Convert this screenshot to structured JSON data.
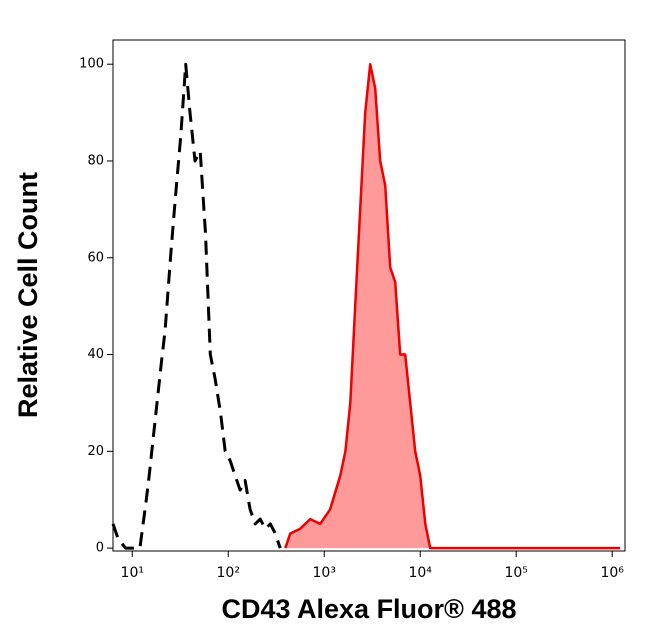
{
  "chart_data": {
    "type": "area",
    "x_label": "CD43 Alexa Fluor® 488",
    "y_label": "Relative Cell Count",
    "x_scale": "log",
    "xlim": [
      6.3,
      1360000
    ],
    "xticks": [
      {
        "value": 10,
        "label": "10¹"
      },
      {
        "value": 100,
        "label": "10²"
      },
      {
        "value": 1000,
        "label": "10³"
      },
      {
        "value": 10000,
        "label": "10⁴"
      },
      {
        "value": 100000,
        "label": "10⁵"
      },
      {
        "value": 1000000,
        "label": "10⁶"
      }
    ],
    "ylim": [
      -0.6,
      105
    ],
    "yticks": [
      0,
      20,
      40,
      60,
      80,
      100
    ],
    "series": [
      {
        "color": "#000000",
        "dashed": true,
        "filled": false,
        "x": [
          6.3,
          7.1,
          8.5,
          12,
          14,
          15,
          17,
          20,
          22,
          25,
          28,
          32,
          36,
          40,
          45,
          51,
          58,
          65,
          73,
          83,
          93,
          105,
          118,
          133,
          150,
          169,
          191,
          215,
          243,
          274,
          309,
          348
        ],
        "values": [
          5,
          2,
          0,
          0,
          10,
          15,
          25,
          38,
          45,
          60,
          72,
          85,
          100,
          90,
          80,
          82,
          65,
          40,
          35,
          28,
          20,
          18,
          15,
          12,
          14,
          8,
          5,
          6,
          4,
          5,
          3,
          0
        ]
      },
      {
        "color": "#ee0000",
        "fill": "#ff9a9a",
        "dashed": false,
        "filled": true,
        "x": [
          393,
          442,
          562,
          714,
          908,
          1150,
          1470,
          1660,
          1870,
          2100,
          2370,
          2670,
          3010,
          3400,
          3830,
          4320,
          4870,
          5490,
          6190,
          6980,
          7870,
          8870,
          10000,
          11300,
          12700,
          68000,
          1210000
        ],
        "values": [
          0,
          3,
          4,
          6,
          5,
          8,
          15,
          20,
          30,
          50,
          70,
          90,
          100,
          95,
          80,
          75,
          58,
          55,
          40,
          40,
          30,
          20,
          15,
          5,
          0,
          0,
          0
        ]
      }
    ]
  }
}
